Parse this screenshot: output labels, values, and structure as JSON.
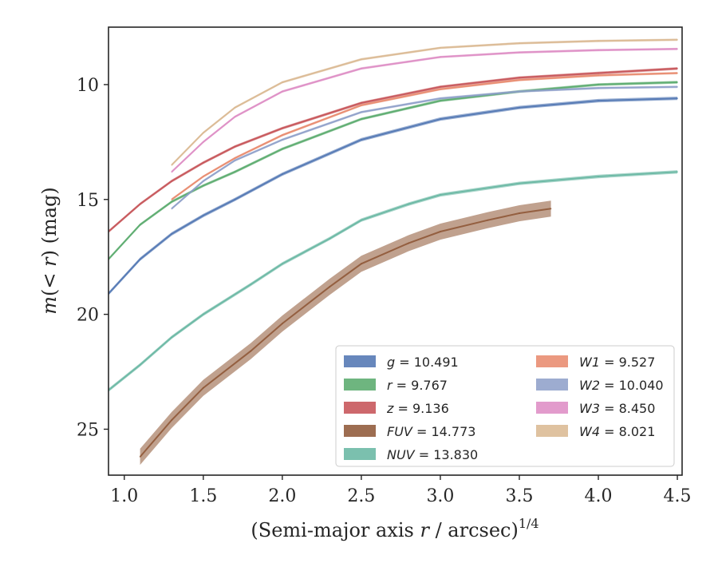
{
  "chart_data": {
    "type": "line",
    "xlabel_text": "(Semi-major axis r / arcsec)",
    "xlabel_var": "r",
    "xlabel_exp": "1/4",
    "ylabel_text": "m(< r) (mag)",
    "xlim": [
      0.9,
      4.53
    ],
    "ylim": [
      27.0,
      7.5
    ],
    "y_inverted": true,
    "grid": false,
    "legend_placement": "lower-right",
    "x_ticks": [
      1.0,
      1.5,
      2.0,
      2.5,
      3.0,
      3.5,
      4.0,
      4.5
    ],
    "x_tick_labels": [
      "1.0",
      "1.5",
      "2.0",
      "2.5",
      "3.0",
      "3.5",
      "4.0",
      "4.5"
    ],
    "y_ticks": [
      10,
      15,
      20,
      25
    ],
    "y_tick_labels": [
      "10",
      "15",
      "20",
      "25"
    ],
    "series": [
      {
        "name": "g",
        "legend_label": "g = 10.491",
        "color": "#4c72b0",
        "x": [
          0.9,
          1.1,
          1.3,
          1.5,
          1.7,
          2.0,
          2.5,
          3.0,
          3.5,
          4.0,
          4.5
        ],
        "y": [
          19.1,
          17.6,
          16.5,
          15.7,
          15.0,
          13.9,
          12.4,
          11.5,
          11.0,
          10.7,
          10.6
        ],
        "band": 0.15
      },
      {
        "name": "r",
        "legend_label": "r = 9.767",
        "color": "#55a868",
        "x": [
          0.9,
          1.1,
          1.3,
          1.5,
          1.7,
          2.0,
          2.5,
          3.0,
          3.5,
          4.0,
          4.5
        ],
        "y": [
          17.6,
          16.1,
          15.1,
          14.4,
          13.8,
          12.8,
          11.5,
          10.7,
          10.3,
          10.0,
          9.9
        ],
        "band": 0.12
      },
      {
        "name": "z",
        "legend_label": "z = 9.136",
        "color": "#c44e52",
        "x": [
          0.9,
          1.1,
          1.3,
          1.5,
          1.7,
          2.0,
          2.5,
          3.0,
          3.5,
          4.0,
          4.5
        ],
        "y": [
          16.4,
          15.2,
          14.2,
          13.4,
          12.7,
          11.9,
          10.8,
          10.1,
          9.7,
          9.5,
          9.3
        ],
        "band": 0.12
      },
      {
        "name": "FUV",
        "legend_label": "FUV = 14.773",
        "color": "#8c5432",
        "x": [
          1.1,
          1.3,
          1.5,
          1.8,
          2.0,
          2.3,
          2.5,
          2.8,
          3.0,
          3.3,
          3.5,
          3.7
        ],
        "y": [
          26.2,
          24.6,
          23.2,
          21.6,
          20.4,
          18.8,
          17.8,
          16.9,
          16.4,
          15.9,
          15.6,
          15.4
        ],
        "band": 0.7
      },
      {
        "name": "NUV",
        "legend_label": "NUV = 13.830",
        "color": "#64b5a0",
        "x": [
          0.9,
          1.1,
          1.3,
          1.5,
          1.8,
          2.0,
          2.3,
          2.5,
          2.8,
          3.0,
          3.5,
          4.0,
          4.5
        ],
        "y": [
          23.3,
          22.2,
          21.0,
          20.0,
          18.7,
          17.8,
          16.7,
          15.9,
          15.2,
          14.8,
          14.3,
          14.0,
          13.8
        ],
        "band": 0.15
      },
      {
        "name": "W1",
        "legend_label": "W1 = 9.527",
        "color": "#e8876a",
        "x": [
          1.3,
          1.5,
          1.7,
          2.0,
          2.5,
          3.0,
          3.5,
          4.0,
          4.5
        ],
        "y": [
          15.0,
          14.0,
          13.2,
          12.2,
          10.9,
          10.2,
          9.8,
          9.6,
          9.5
        ],
        "band": 0.1
      },
      {
        "name": "W2",
        "legend_label": "W2 = 10.040",
        "color": "#8c9ec8",
        "x": [
          1.3,
          1.5,
          1.7,
          2.0,
          2.5,
          3.0,
          3.5,
          4.0,
          4.5
        ],
        "y": [
          15.4,
          14.2,
          13.3,
          12.4,
          11.2,
          10.6,
          10.3,
          10.15,
          10.1
        ],
        "band": 0.1
      },
      {
        "name": "W3",
        "legend_label": "W3 = 8.450",
        "color": "#dd8ac3",
        "x": [
          1.3,
          1.5,
          1.7,
          2.0,
          2.5,
          3.0,
          3.5,
          4.0,
          4.5
        ],
        "y": [
          13.8,
          12.5,
          11.4,
          10.3,
          9.3,
          8.8,
          8.6,
          8.5,
          8.45
        ],
        "band": 0.1
      },
      {
        "name": "W4",
        "legend_label": "W4 = 8.021",
        "color": "#d9b78f",
        "x": [
          1.3,
          1.5,
          1.7,
          2.0,
          2.5,
          3.0,
          3.5,
          4.0,
          4.5
        ],
        "y": [
          13.5,
          12.1,
          11.0,
          9.9,
          8.9,
          8.4,
          8.2,
          8.1,
          8.05
        ],
        "band": 0.1
      }
    ]
  }
}
